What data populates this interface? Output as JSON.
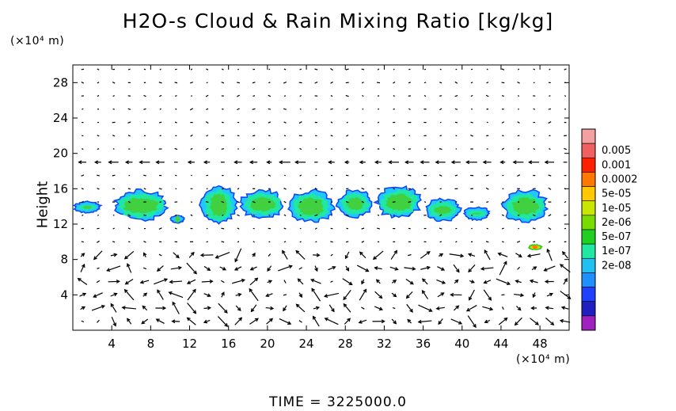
{
  "title": "H2O-s Cloud & Rain Mixing Ratio [kg/kg]",
  "y_unit": "(×10⁴ m)",
  "x_unit": "(×10⁴ m)",
  "time_label": "TIME = 3225000.0",
  "chart_data": {
    "type": "heatmap",
    "title": "H2O-s Cloud & Rain Mixing Ratio [kg/kg]",
    "xlabel": "",
    "ylabel": "Height",
    "x_unit": "(×10⁴ m)",
    "y_unit": "(×10⁴ m)",
    "xlim": [
      0,
      51
    ],
    "ylim": [
      0,
      30
    ],
    "xticks": [
      4,
      8,
      12,
      16,
      20,
      24,
      28,
      32,
      36,
      40,
      44,
      48
    ],
    "yticks": [
      4,
      8,
      12,
      16,
      20,
      24,
      28
    ],
    "colorbar": {
      "labels": [
        "0.005",
        "0.001",
        "0.0002",
        "5e-05",
        "1e-05",
        "2e-06",
        "5e-07",
        "1e-07",
        "2e-08"
      ],
      "colors": [
        "#f4a0a0",
        "#f06060",
        "#ff2000",
        "#ff7800",
        "#ffc800",
        "#c8e600",
        "#78dc00",
        "#20d020",
        "#20e8a0",
        "#20c0f0",
        "#2090ff",
        "#2040ff",
        "#2020c0",
        "#a020c0"
      ]
    },
    "cloud_regions": [
      {
        "x": [
          0,
          3
        ],
        "y": [
          13.2,
          14.5
        ],
        "level": "1e-07"
      },
      {
        "x": [
          4,
          10
        ],
        "y": [
          12,
          16
        ],
        "level": "1e-05"
      },
      {
        "x": [
          13,
          49
        ],
        "y": [
          12,
          16.5
        ],
        "level": "1e-05"
      },
      {
        "x": [
          47,
          48
        ],
        "y": [
          9,
          9.6
        ],
        "level": "0.0002"
      }
    ],
    "wind_vectors": "dense field of arrows over full domain",
    "grid": false,
    "legend_placement": "right"
  }
}
